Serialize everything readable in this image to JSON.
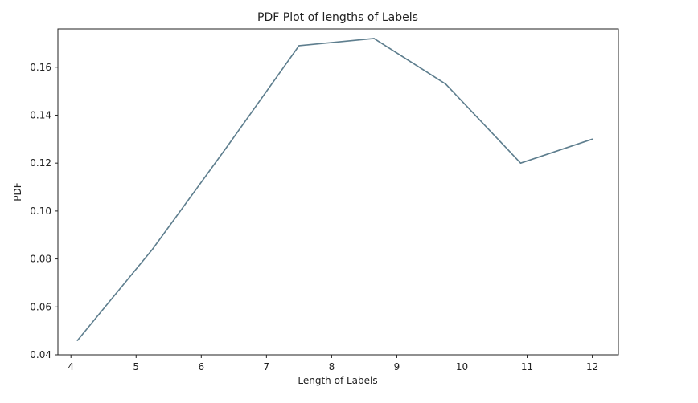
{
  "chart_data": {
    "type": "line",
    "title": "PDF Plot of lengths of Labels",
    "xlabel": "Length of Labels",
    "ylabel": "PDF",
    "xlim": [
      3.8,
      12.4
    ],
    "ylim": [
      0.04,
      0.176
    ],
    "xticks": [
      "4",
      "5",
      "6",
      "7",
      "8",
      "9",
      "10",
      "11",
      "12"
    ],
    "yticks": [
      "0.04",
      "0.06",
      "0.08",
      "0.10",
      "0.12",
      "0.14",
      "0.16"
    ],
    "grid": false,
    "series": [
      {
        "color": "#5e7e8e",
        "x": [
          4.1,
          5.25,
          6.4,
          7.5,
          8.65,
          9.75,
          10.9,
          12.0
        ],
        "y": [
          0.046,
          0.084,
          0.127,
          0.169,
          0.172,
          0.153,
          0.12,
          0.13
        ]
      }
    ]
  }
}
